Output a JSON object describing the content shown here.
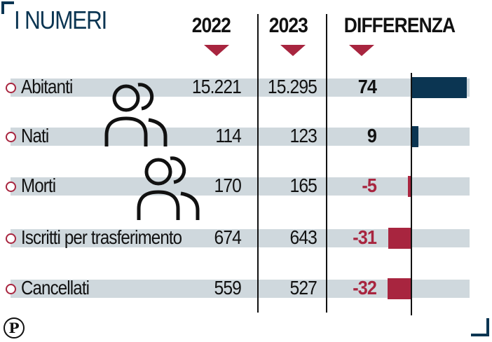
{
  "title": "I NUMERI",
  "logo_glyph": "P",
  "colors": {
    "navy": "#0b3552",
    "crimson": "#a8253f",
    "band": "#cfd8dd"
  },
  "chart_data": {
    "type": "table",
    "title": "I NUMERI",
    "columns": [
      "2022",
      "2023",
      "DIFFERENZA"
    ],
    "rows": [
      {
        "label": "Abitanti",
        "y2022": "15.221",
        "y2023": "15.295",
        "diff": "74",
        "diff_value": 74
      },
      {
        "label": "Nati",
        "y2022": "114",
        "y2023": "123",
        "diff": "9",
        "diff_value": 9
      },
      {
        "label": "Morti",
        "y2022": "170",
        "y2023": "165",
        "diff": "-5",
        "diff_value": -5
      },
      {
        "label": "Iscritti per trasferimento",
        "y2022": "674",
        "y2023": "643",
        "diff": "-31",
        "diff_value": -31
      },
      {
        "label": "Cancellati",
        "y2022": "559",
        "y2023": "527",
        "diff": "-32",
        "diff_value": -32
      }
    ]
  }
}
